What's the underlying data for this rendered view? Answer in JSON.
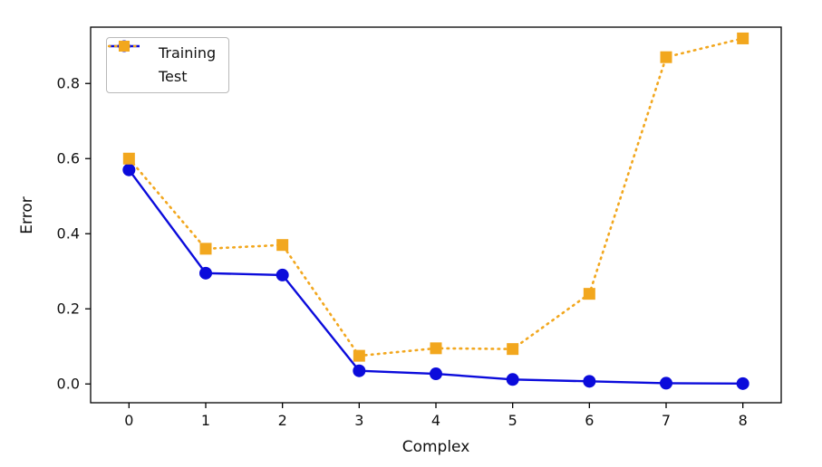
{
  "figure": {
    "background": "#ffffff",
    "frame_color": "#000000",
    "text_color": "#111111"
  },
  "chart_data": {
    "type": "line",
    "title": "",
    "xlabel": "Complex",
    "ylabel": "Error",
    "x": [
      0,
      1,
      2,
      3,
      4,
      5,
      6,
      7,
      8
    ],
    "series": [
      {
        "name": "Training",
        "color": "#0b0bdb",
        "line_style": "solid",
        "marker": "circle",
        "values": [
          0.57,
          0.295,
          0.29,
          0.035,
          0.027,
          0.012,
          0.007,
          0.002,
          0.001
        ]
      },
      {
        "name": "Test",
        "color": "#f2a71e",
        "line_style": "dotted",
        "marker": "square",
        "values": [
          0.6,
          0.36,
          0.37,
          0.075,
          0.095,
          0.093,
          0.24,
          0.87,
          0.92
        ]
      }
    ],
    "xlim": [
      -0.5,
      8.5
    ],
    "ylim": [
      -0.05,
      0.95
    ],
    "x_ticks": [
      0,
      1,
      2,
      3,
      4,
      5,
      6,
      7,
      8
    ],
    "y_ticks": [
      0.0,
      0.2,
      0.4,
      0.6,
      0.8
    ],
    "legend_position": "upper left",
    "grid": false
  }
}
